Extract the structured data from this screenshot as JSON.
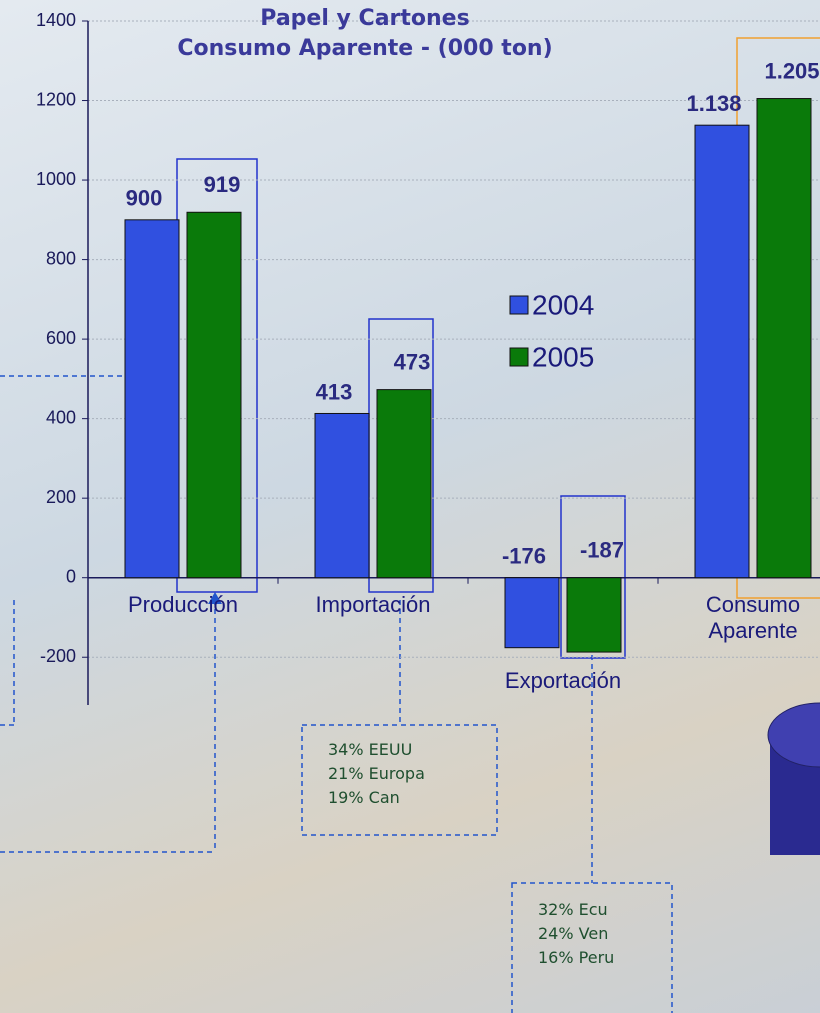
{
  "chart_data": {
    "type": "bar",
    "title": [
      "Papel y Cartones",
      "Consumo Aparente - (000 ton)"
    ],
    "categories": [
      "Producción",
      "Importación",
      "Exportación",
      "Consumo Aparente"
    ],
    "series": [
      {
        "name": "2004",
        "color": "#3050e0",
        "values": [
          900,
          413,
          -176,
          1138
        ],
        "value_labels": [
          "900",
          "413",
          "-176",
          "1.138"
        ]
      },
      {
        "name": "2005",
        "color": "#0a7a0a",
        "values": [
          919,
          473,
          -187,
          1205
        ],
        "value_labels": [
          "919",
          "473",
          "-187",
          "1.205"
        ]
      }
    ],
    "ylim": [
      -300,
      1400
    ],
    "yticks": [
      -200,
      0,
      200,
      400,
      600,
      800,
      1000,
      1200,
      1400
    ],
    "grid": true,
    "annotations": [
      [
        "34% EEUU",
        "21% Europa",
        "19% Can"
      ],
      [
        "32% Ecu",
        "24% Ven",
        "16% Peru"
      ]
    ]
  }
}
